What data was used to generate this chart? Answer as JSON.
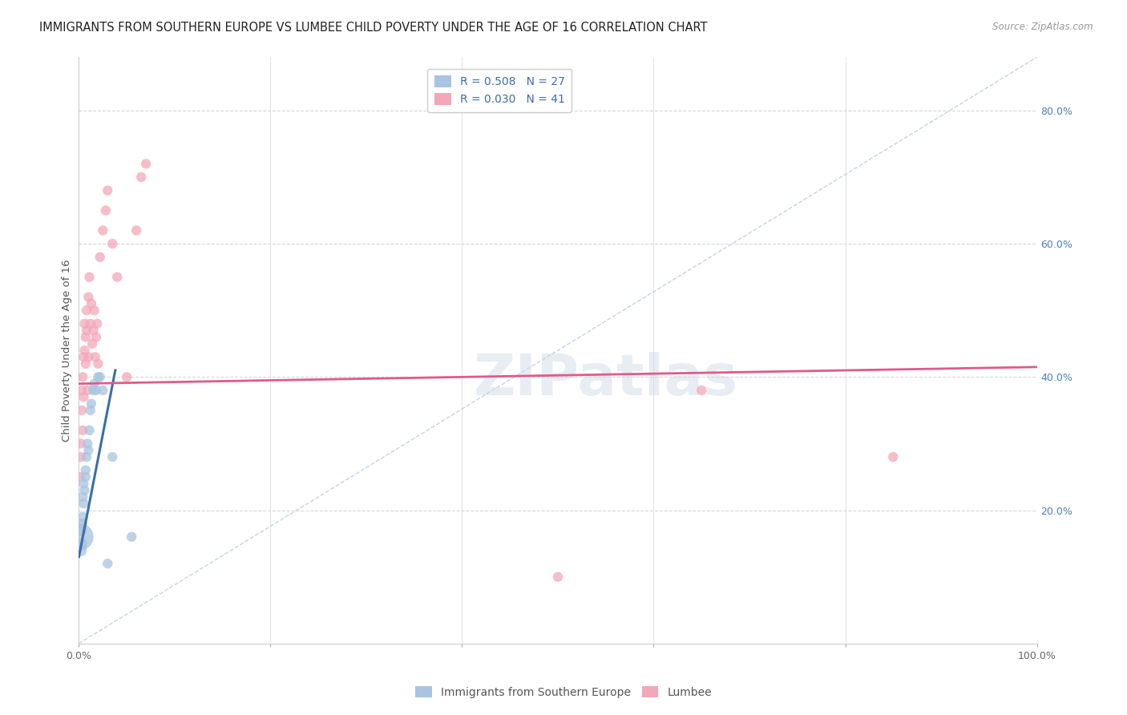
{
  "title": "IMMIGRANTS FROM SOUTHERN EUROPE VS LUMBEE CHILD POVERTY UNDER THE AGE OF 16 CORRELATION CHART",
  "source": "Source: ZipAtlas.com",
  "ylabel": "Child Poverty Under the Age of 16",
  "legend_labels": [
    "Immigrants from Southern Europe",
    "Lumbee"
  ],
  "blue_R": 0.508,
  "blue_N": 27,
  "pink_R": 0.03,
  "pink_N": 41,
  "blue_color": "#a8c4e0",
  "pink_color": "#f4a7b9",
  "blue_line_color": "#3a6fa8",
  "pink_line_color": "#e05a8a",
  "diagonal_color": "#c0cfe0",
  "watermark": "ZIPatlas",
  "xlim": [
    0,
    1.0
  ],
  "ylim": [
    0,
    0.88
  ],
  "xtick_positions": [
    0,
    0.2,
    0.4,
    0.6,
    0.8,
    1.0
  ],
  "xticklabels": [
    "0.0%",
    "",
    "",
    "",
    "",
    "100.0%"
  ],
  "ytick_positions": [
    0.2,
    0.4,
    0.6,
    0.8
  ],
  "ytick_labels": [
    "20.0%",
    "40.0%",
    "60.0%",
    "80.0%"
  ],
  "blue_scatter_x": [
    0.001,
    0.002,
    0.002,
    0.003,
    0.003,
    0.004,
    0.004,
    0.005,
    0.005,
    0.006,
    0.007,
    0.007,
    0.008,
    0.009,
    0.01,
    0.011,
    0.012,
    0.013,
    0.015,
    0.016,
    0.018,
    0.02,
    0.022,
    0.025,
    0.03,
    0.035,
    0.055
  ],
  "blue_scatter_y": [
    0.16,
    0.14,
    0.17,
    0.15,
    0.18,
    0.19,
    0.22,
    0.21,
    0.24,
    0.23,
    0.25,
    0.26,
    0.28,
    0.3,
    0.29,
    0.32,
    0.35,
    0.36,
    0.38,
    0.39,
    0.38,
    0.4,
    0.4,
    0.38,
    0.12,
    0.28,
    0.16
  ],
  "blue_scatter_sizes": [
    600,
    120,
    110,
    100,
    90,
    85,
    85,
    80,
    80,
    80,
    80,
    80,
    80,
    80,
    80,
    80,
    80,
    80,
    80,
    80,
    80,
    80,
    80,
    80,
    80,
    80,
    80
  ],
  "pink_scatter_x": [
    0.001,
    0.002,
    0.002,
    0.003,
    0.003,
    0.004,
    0.004,
    0.005,
    0.005,
    0.006,
    0.006,
    0.007,
    0.007,
    0.008,
    0.008,
    0.009,
    0.01,
    0.01,
    0.011,
    0.012,
    0.013,
    0.014,
    0.015,
    0.016,
    0.017,
    0.018,
    0.019,
    0.02,
    0.022,
    0.025,
    0.028,
    0.03,
    0.035,
    0.04,
    0.05,
    0.06,
    0.065,
    0.07,
    0.5,
    0.65,
    0.85
  ],
  "pink_scatter_y": [
    0.25,
    0.28,
    0.3,
    0.35,
    0.38,
    0.32,
    0.4,
    0.37,
    0.43,
    0.44,
    0.48,
    0.42,
    0.46,
    0.47,
    0.5,
    0.38,
    0.43,
    0.52,
    0.55,
    0.48,
    0.51,
    0.45,
    0.47,
    0.5,
    0.43,
    0.46,
    0.48,
    0.42,
    0.58,
    0.62,
    0.65,
    0.68,
    0.6,
    0.55,
    0.4,
    0.62,
    0.7,
    0.72,
    0.1,
    0.38,
    0.28
  ],
  "pink_scatter_sizes": [
    80,
    80,
    80,
    80,
    80,
    80,
    80,
    80,
    80,
    80,
    80,
    80,
    80,
    80,
    80,
    80,
    80,
    80,
    80,
    80,
    80,
    80,
    80,
    80,
    80,
    80,
    80,
    80,
    80,
    80,
    80,
    80,
    80,
    80,
    80,
    80,
    80,
    80,
    80,
    80,
    80
  ],
  "blue_trend_x": [
    0.0,
    0.038
  ],
  "blue_trend_y": [
    0.13,
    0.41
  ],
  "pink_trend_x": [
    0.0,
    1.0
  ],
  "pink_trend_y": [
    0.39,
    0.415
  ],
  "grid_color": "#d8d8d8",
  "background_color": "#ffffff",
  "title_fontsize": 10.5,
  "axis_label_fontsize": 9.5,
  "tick_fontsize": 9,
  "legend_fontsize": 10
}
